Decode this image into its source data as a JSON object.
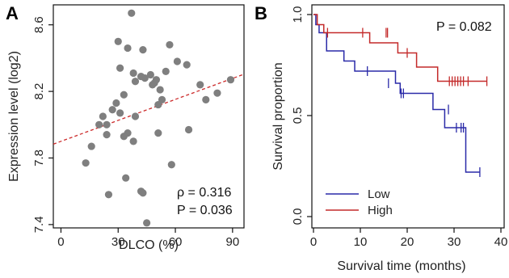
{
  "chart_data": [
    {
      "type": "scatter",
      "panel_label": "A",
      "xlabel": "DLCO (%)",
      "ylabel": "Expression level (log2)",
      "xlim": [
        -4,
        96
      ],
      "ylim": [
        7.38,
        8.72
      ],
      "xticks": [
        0,
        30,
        60,
        90
      ],
      "yticks": [
        7.4,
        7.8,
        8.2,
        8.6
      ],
      "grid": false,
      "point_color": "#7f7f7f",
      "trend_color": "#cc2a2a",
      "trend_line": {
        "slope": 0.0042,
        "intercept": 7.9,
        "style": "dashed"
      },
      "points": [
        [
          37,
          8.67
        ],
        [
          30,
          8.5
        ],
        [
          57,
          8.48
        ],
        [
          35,
          8.46
        ],
        [
          43,
          8.45
        ],
        [
          61,
          8.38
        ],
        [
          66,
          8.36
        ],
        [
          31,
          8.34
        ],
        [
          55,
          8.32
        ],
        [
          38,
          8.31
        ],
        [
          47,
          8.3
        ],
        [
          42,
          8.29
        ],
        [
          44,
          8.28
        ],
        [
          50,
          8.27
        ],
        [
          89,
          8.27
        ],
        [
          39,
          8.26
        ],
        [
          49,
          8.25
        ],
        [
          48,
          8.24
        ],
        [
          73,
          8.24
        ],
        [
          52,
          8.21
        ],
        [
          33,
          8.18
        ],
        [
          53,
          8.15
        ],
        [
          82,
          8.19
        ],
        [
          76,
          8.15
        ],
        [
          29,
          8.13
        ],
        [
          51,
          8.12
        ],
        [
          27,
          8.09
        ],
        [
          31,
          8.07
        ],
        [
          39,
          8.05
        ],
        [
          22,
          8.05
        ],
        [
          20,
          8.0
        ],
        [
          24,
          8.0
        ],
        [
          67,
          7.97
        ],
        [
          35,
          7.95
        ],
        [
          51,
          7.95
        ],
        [
          24,
          7.94
        ],
        [
          33,
          7.93
        ],
        [
          38,
          7.9
        ],
        [
          16,
          7.87
        ],
        [
          13,
          7.77
        ],
        [
          58,
          7.76
        ],
        [
          34,
          7.68
        ],
        [
          42,
          7.6
        ],
        [
          43,
          7.59
        ],
        [
          25,
          7.58
        ],
        [
          45,
          7.41
        ]
      ],
      "annotations": [
        "ρ = 0.316",
        "P = 0.036"
      ]
    },
    {
      "type": "line",
      "subtype": "kaplan-meier",
      "panel_label": "B",
      "xlabel": "Survival time (months)",
      "ylabel": "Survival proportion",
      "xlim": [
        0,
        40
      ],
      "ylim": [
        0,
        1
      ],
      "xticks": [
        0,
        10,
        20,
        30,
        40
      ],
      "yticks": [
        0.0,
        0.5,
        1.0
      ],
      "ytick_labels": [
        "0.0",
        "0.5",
        "1.0"
      ],
      "grid": false,
      "annotation": "P = 0.082",
      "legend_position": "bottom-left",
      "series": [
        {
          "name": "Low",
          "color": "#2a2aa8",
          "steps": [
            [
              0,
              1.0
            ],
            [
              0.5,
              0.95
            ],
            [
              1.2,
              0.91
            ],
            [
              2.8,
              0.82
            ],
            [
              6.5,
              0.77
            ],
            [
              8.8,
              0.72
            ],
            [
              17.5,
              0.66
            ],
            [
              18.5,
              0.61
            ],
            [
              25.5,
              0.53
            ],
            [
              28.0,
              0.44
            ],
            [
              32.5,
              0.22
            ],
            [
              35.5,
              0.22
            ]
          ],
          "censored": [
            [
              11.5,
              0.72
            ],
            [
              16.0,
              0.66
            ],
            [
              18.7,
              0.61
            ],
            [
              19.2,
              0.61
            ],
            [
              28.8,
              0.53
            ],
            [
              30.5,
              0.44
            ],
            [
              31.5,
              0.44
            ],
            [
              32.0,
              0.44
            ],
            [
              35.5,
              0.22
            ]
          ]
        },
        {
          "name": "High",
          "color": "#c42a2a",
          "steps": [
            [
              0,
              1.0
            ],
            [
              0.8,
              0.95
            ],
            [
              2.2,
              0.91
            ],
            [
              12.0,
              0.86
            ],
            [
              18.0,
              0.81
            ],
            [
              22.0,
              0.74
            ],
            [
              26.5,
              0.67
            ],
            [
              37.0,
              0.67
            ]
          ],
          "censored": [
            [
              3.0,
              0.91
            ],
            [
              10.5,
              0.91
            ],
            [
              15.5,
              0.91
            ],
            [
              15.8,
              0.91
            ],
            [
              20.0,
              0.81
            ],
            [
              29.0,
              0.67
            ],
            [
              29.6,
              0.67
            ],
            [
              30.2,
              0.67
            ],
            [
              30.8,
              0.67
            ],
            [
              31.4,
              0.67
            ],
            [
              32.0,
              0.67
            ],
            [
              33.0,
              0.67
            ],
            [
              37.0,
              0.67
            ]
          ]
        }
      ]
    }
  ]
}
